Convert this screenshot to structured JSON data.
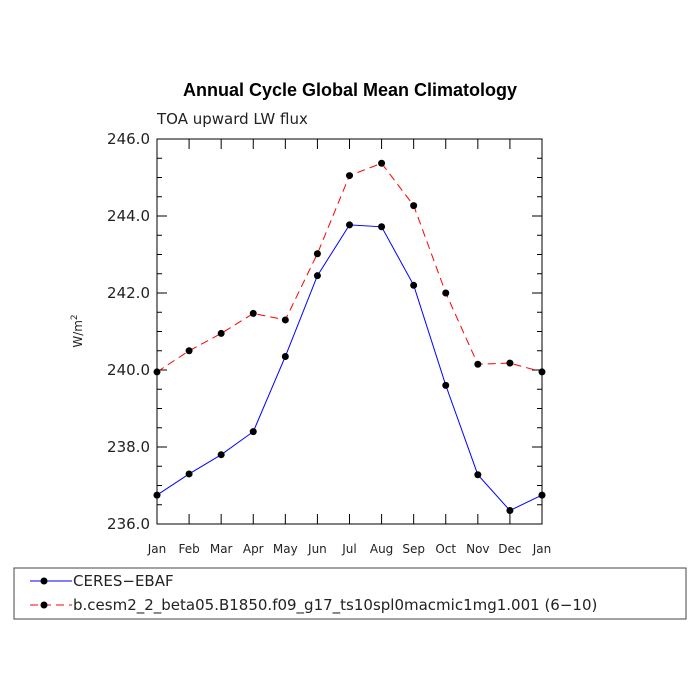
{
  "chart_data": {
    "type": "line",
    "title": "Annual Cycle Global Mean Climatology",
    "subtitle": "TOA upward LW flux",
    "ylabel": "W/m",
    "ylabel_sup": "2",
    "xlabel": "",
    "categories": [
      "Jan",
      "Feb",
      "Mar",
      "Apr",
      "May",
      "Jun",
      "Jul",
      "Aug",
      "Sep",
      "Oct",
      "Nov",
      "Dec",
      "Jan"
    ],
    "ylim": [
      236.0,
      246.0
    ],
    "yticks": [
      236.0,
      238.0,
      240.0,
      242.0,
      244.0,
      246.0
    ],
    "ytick_labels": [
      "236.0",
      "238.0",
      "240.0",
      "242.0",
      "244.0",
      "246.0"
    ],
    "series": [
      {
        "name": "CERES−EBAF",
        "color": "#0000ff",
        "dash": "solid",
        "values": [
          236.75,
          237.3,
          237.8,
          238.4,
          240.35,
          242.45,
          243.77,
          243.72,
          242.2,
          239.6,
          237.28,
          236.35,
          236.75
        ]
      },
      {
        "name": "b.cesm2_2_beta05.B1850.f09_g17_ts10spl0macmic1mg1.001 (6−10)",
        "color": "#ff0000",
        "dash": "dashed",
        "values": [
          239.95,
          240.5,
          240.95,
          241.47,
          241.3,
          243.02,
          245.05,
          245.37,
          244.27,
          242.0,
          240.15,
          240.18,
          239.95
        ]
      }
    ]
  }
}
